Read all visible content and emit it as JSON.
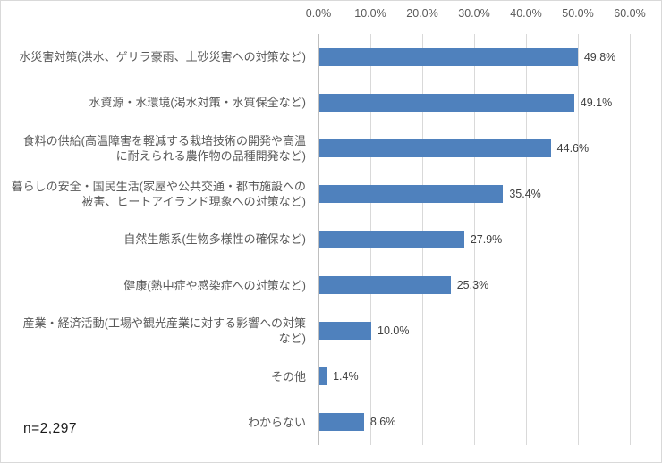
{
  "chart_data": {
    "type": "bar",
    "orientation": "horizontal",
    "title": "",
    "xlabel": "",
    "ylabel": "",
    "xlim": [
      0,
      60
    ],
    "grid": true,
    "axis_position": "top",
    "x_ticks": [
      "0.0%",
      "10.0%",
      "20.0%",
      "30.0%",
      "40.0%",
      "50.0%",
      "60.0%"
    ],
    "categories": [
      "水災害対策(洪水、ゲリラ豪雨、土砂災害への対策など)",
      "水資源・水環境(渇水対策・水質保全など)",
      "食料の供給(高温障害を軽減する栽培技術の開発や高温\nに耐えられる農作物の品種開発など)",
      "暮らしの安全・国民生活(家屋や公共交通・都市施設への\n被害、ヒートアイランド現象への対策など)",
      "自然生態系(生物多様性の確保など)",
      "健康(熱中症や感染症への対策など)",
      "産業・経済活動(工場や観光産業に対する影響への対策\nなど)",
      "その他",
      "わからない"
    ],
    "values": [
      49.8,
      49.1,
      44.6,
      35.4,
      27.9,
      25.3,
      10.0,
      1.4,
      8.6
    ],
    "value_labels": [
      "49.8%",
      "49.1%",
      "44.6%",
      "35.4%",
      "27.9%",
      "25.3%",
      "10.0%",
      "1.4%",
      "8.6%"
    ],
    "annotation": "n=2,297",
    "bar_color": "#4f81bd",
    "gridline_color": "#d9d9d9",
    "legend": false
  }
}
